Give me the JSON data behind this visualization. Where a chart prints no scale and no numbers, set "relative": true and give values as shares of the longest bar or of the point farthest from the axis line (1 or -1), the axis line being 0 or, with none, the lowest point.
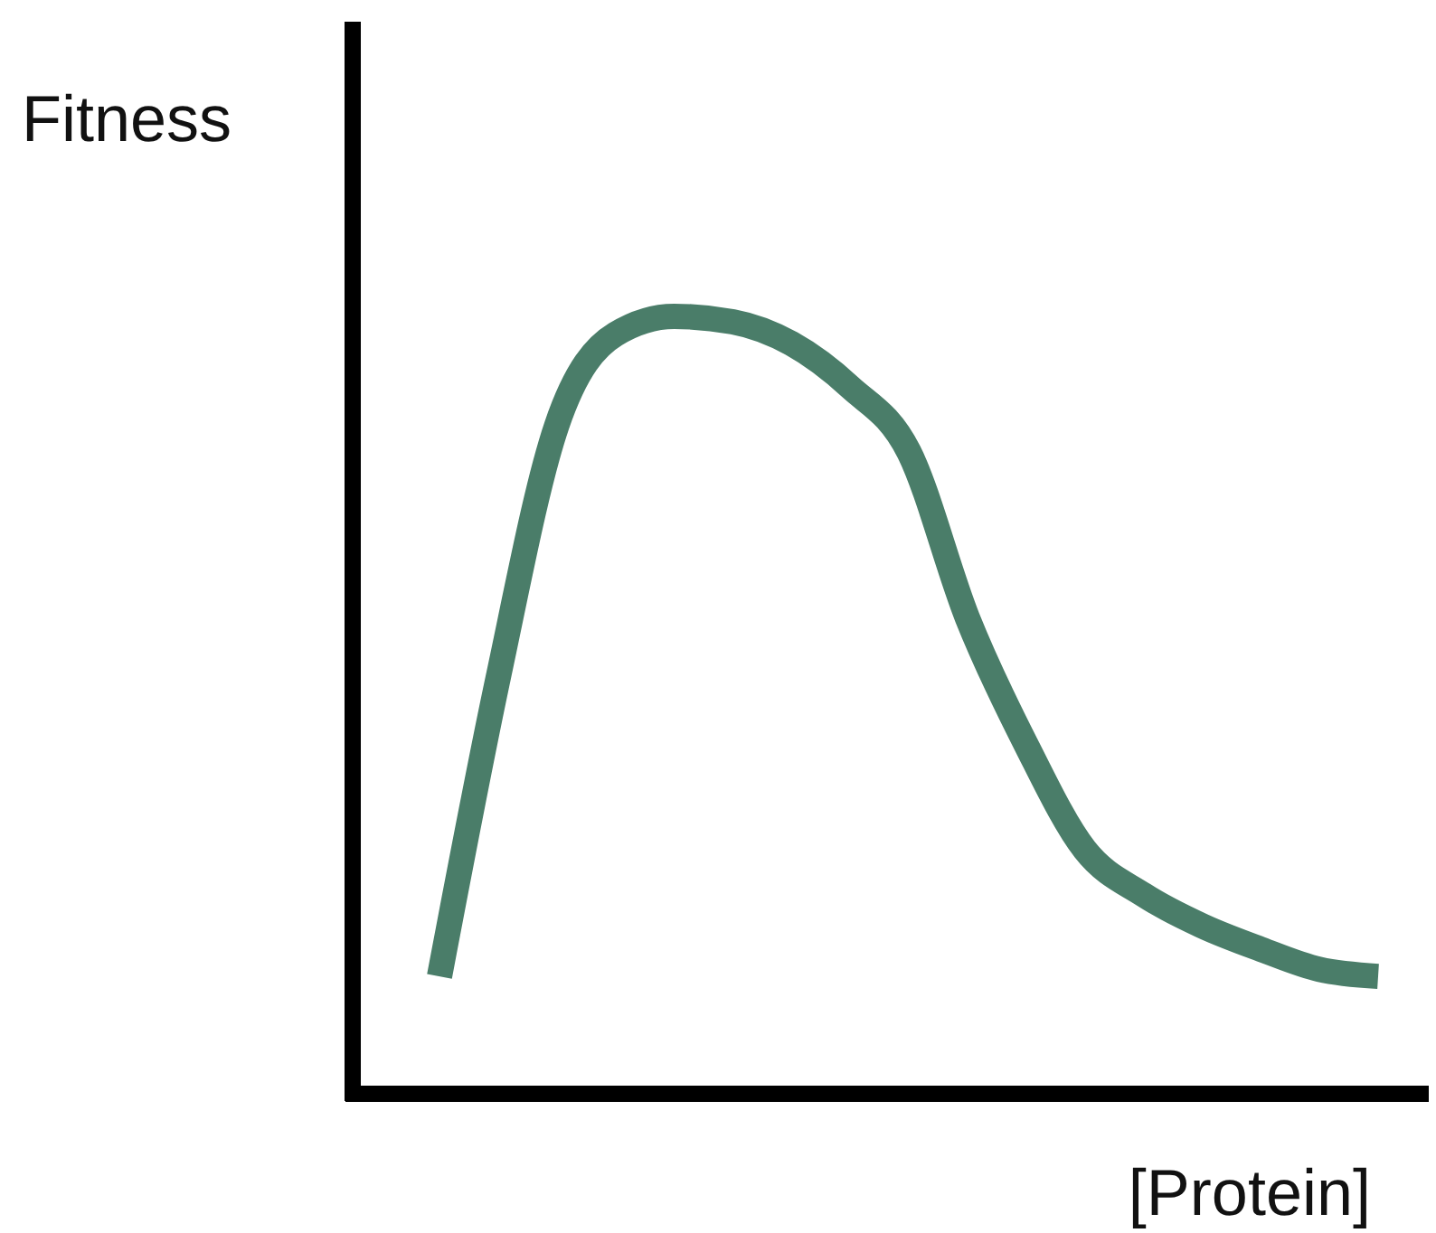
{
  "chart_data": {
    "type": "line",
    "relative": true,
    "xlabel": "[Protein]",
    "ylabel": "Fitness",
    "categories": [
      null,
      null,
      null,
      null,
      null,
      null,
      null,
      null,
      null,
      null,
      null,
      null,
      null,
      null,
      null,
      null,
      null
    ],
    "series": [
      {
        "color": "#4a7d69",
        "values": [
          0.151,
          0.535,
          0.86,
          0.977,
          1,
          0.993,
          0.965,
          0.909,
          0.826,
          0.612,
          0.449,
          0.314,
          0.256,
          0.216,
          0.186,
          0.16,
          0.151
        ]
      }
    ],
    "grid": false,
    "marker": "none",
    "line_style": "solid"
  }
}
